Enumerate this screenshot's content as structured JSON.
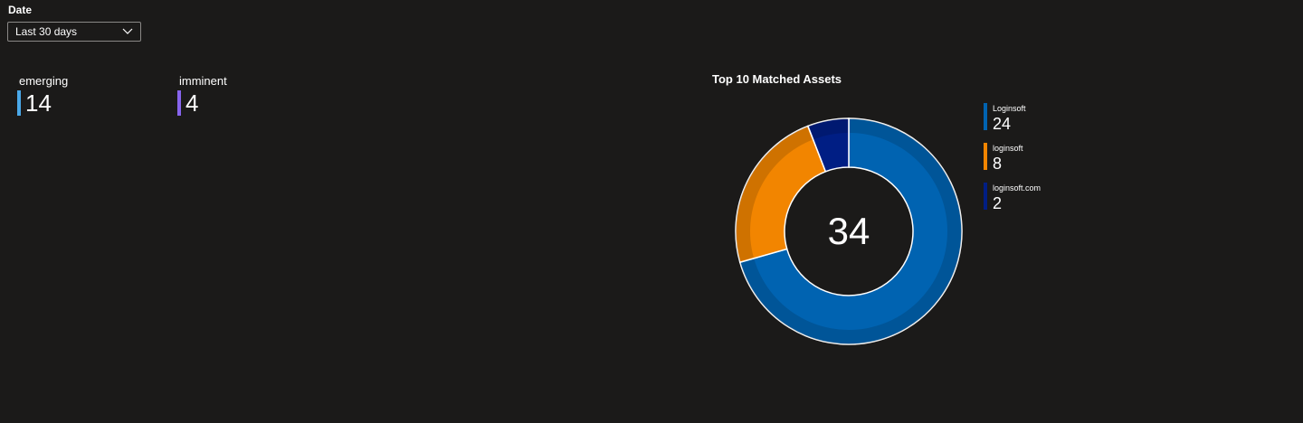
{
  "filter": {
    "label": "Date",
    "selected": "Last 30 days"
  },
  "kpis": [
    {
      "label": "emerging",
      "value": "14",
      "color": "#4aa8e8"
    },
    {
      "label": "imminent",
      "value": "4",
      "color": "#8764ed"
    }
  ],
  "chart": {
    "title": "Top 10 Matched Assets",
    "total": "34"
  },
  "chart_data": {
    "type": "pie",
    "title": "Top 10 Matched Assets",
    "center_label": "34",
    "categories": [
      "Loginsoft",
      "loginsoft",
      "loginsoft.com"
    ],
    "values": [
      24,
      8,
      2
    ],
    "colors": [
      "#0063b1",
      "#f28500",
      "#001e84"
    ],
    "legend_position": "right"
  }
}
